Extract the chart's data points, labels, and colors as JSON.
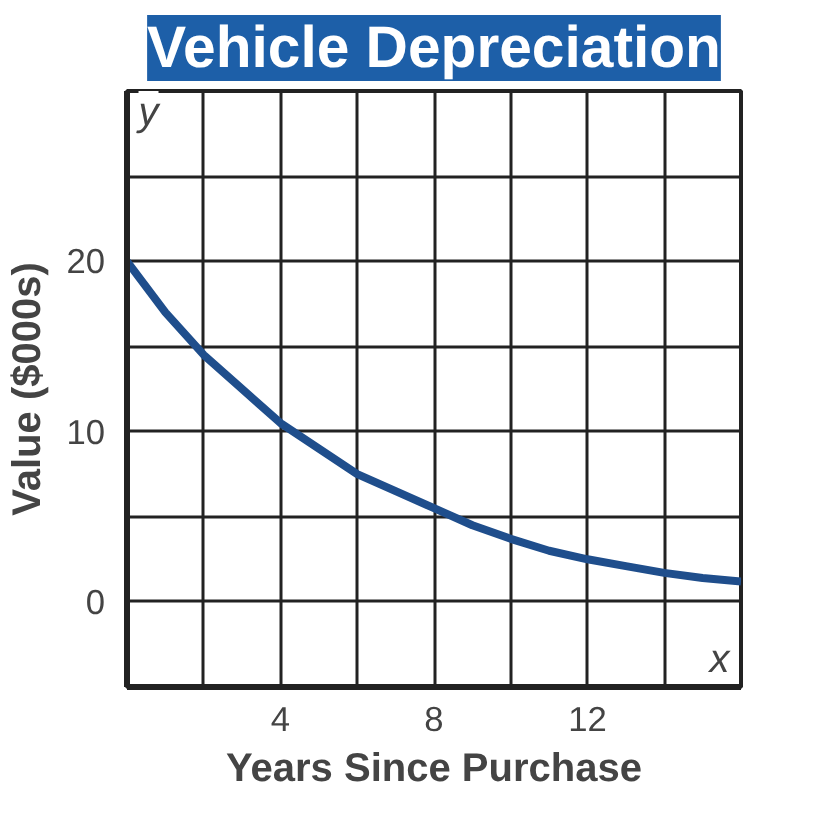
{
  "chart_data": {
    "type": "line",
    "title": "Vehicle Depreciation",
    "xlabel": "Years Since Purchase",
    "ylabel": "Value ($000s)",
    "x": [
      0,
      1,
      2,
      3,
      4,
      5,
      6,
      7,
      8,
      9,
      10,
      11,
      12,
      13,
      14,
      15,
      16
    ],
    "series": [
      {
        "color": "#1f4e8c",
        "values": [
          20,
          17,
          14.5,
          12.5,
          10.5,
          9,
          7.5,
          6.5,
          5.5,
          4.5,
          3.7,
          3,
          2.5,
          2.1,
          1.7,
          1.4,
          1.2
        ]
      }
    ],
    "xlim": [
      0,
      16
    ],
    "ylim": [
      -5,
      30
    ],
    "xticks": [
      {
        "value": 0,
        "label": null
      },
      {
        "value": 2,
        "label": null
      },
      4,
      {
        "value": 6,
        "label": null
      },
      8,
      {
        "value": 10,
        "label": null
      },
      12,
      {
        "value": 14,
        "label": null
      },
      {
        "value": 16,
        "label": null
      }
    ],
    "yticks": [
      {
        "value": -5,
        "label": null
      },
      0,
      {
        "value": 5,
        "label": null
      },
      10,
      {
        "value": 15,
        "label": null
      },
      20,
      {
        "value": 25,
        "label": null
      },
      {
        "value": 30,
        "label": null
      }
    ],
    "grid": true,
    "marker": "none",
    "line_style": "solid",
    "annotations": [
      "y",
      "x"
    ]
  }
}
